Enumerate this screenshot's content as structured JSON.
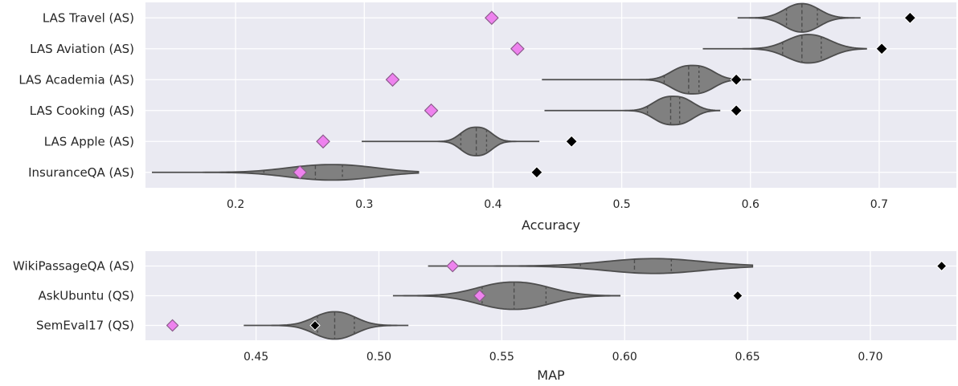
{
  "colors": {
    "background": "#eaeaf2",
    "grid": "#ffffff",
    "violin_fill": "#808080",
    "violin_edge": "#4d4d4d",
    "pink_marker": "#ee82ee",
    "black_marker": "#000000"
  },
  "chart_data": [
    {
      "type": "violin",
      "orientation": "horizontal",
      "xlabel": "Accuracy",
      "xlim": [
        0.13,
        0.76
      ],
      "xticks": [
        0.2,
        0.3,
        0.4,
        0.5,
        0.6,
        0.7
      ],
      "xtick_labels": [
        "0.2",
        "0.3",
        "0.4",
        "0.5",
        "0.6",
        "0.7"
      ],
      "grid": true,
      "categories": [
        "LAS Travel (AS)",
        "LAS Aviation (AS)",
        "LAS Academia (AS)",
        "LAS Cooking (AS)",
        "LAS Apple (AS)",
        "InsuranceQA (AS)"
      ],
      "violins": [
        {
          "min": 0.59,
          "max": 0.685,
          "q1": 0.628,
          "median": 0.64,
          "q3": 0.652,
          "peak": 0.64,
          "halfwidth": 0.92,
          "sharp": 2.2
        },
        {
          "min": 0.563,
          "max": 0.69,
          "q1": 0.625,
          "median": 0.64,
          "q3": 0.655,
          "peak": 0.645,
          "halfwidth": 0.92,
          "sharp": 2.2
        },
        {
          "min": 0.438,
          "max": 0.6,
          "q1": 0.533,
          "median": 0.552,
          "q3": 0.56,
          "peak": 0.555,
          "halfwidth": 0.92,
          "sharp": 2.6
        },
        {
          "min": 0.44,
          "max": 0.576,
          "q1": 0.52,
          "median": 0.538,
          "q3": 0.545,
          "peak": 0.54,
          "halfwidth": 0.92,
          "sharp": 2.6
        },
        {
          "min": 0.298,
          "max": 0.436,
          "q1": 0.375,
          "median": 0.387,
          "q3": 0.395,
          "peak": 0.387,
          "halfwidth": 0.92,
          "sharp": 2.6
        },
        {
          "min": 0.135,
          "max": 0.342,
          "q1": 0.222,
          "median": 0.262,
          "q3": 0.283,
          "peak": 0.275,
          "halfwidth": 0.5,
          "sharp": 2.2
        }
      ],
      "pink_markers": [
        0.399,
        0.419,
        0.322,
        0.352,
        0.268,
        0.25
      ],
      "black_markers": [
        0.724,
        0.702,
        0.589,
        0.589,
        0.461,
        0.434
      ]
    },
    {
      "type": "violin",
      "orientation": "horizontal",
      "xlabel": "MAP",
      "xlim": [
        0.405,
        0.735
      ],
      "xticks": [
        0.45,
        0.5,
        0.55,
        0.6,
        0.65,
        0.7
      ],
      "xtick_labels": [
        "0.45",
        "0.50",
        "0.55",
        "0.60",
        "0.65",
        "0.70"
      ],
      "grid": true,
      "categories": [
        "WikiPassageQA (AS)",
        "AskUbuntu (QS)",
        "SemEval17 (QS)"
      ],
      "violins": [
        {
          "min": 0.52,
          "max": 0.652,
          "q1": 0.582,
          "median": 0.604,
          "q3": 0.619,
          "peak": 0.612,
          "halfwidth": 0.5,
          "sharp": 2.0
        },
        {
          "min": 0.506,
          "max": 0.598,
          "q1": 0.542,
          "median": 0.555,
          "q3": 0.568,
          "peak": 0.555,
          "halfwidth": 0.92,
          "sharp": 2.2
        },
        {
          "min": 0.445,
          "max": 0.512,
          "q1": 0.475,
          "median": 0.482,
          "q3": 0.49,
          "peak": 0.482,
          "halfwidth": 0.92,
          "sharp": 2.2
        }
      ],
      "pink_markers": [
        0.53,
        0.541,
        0.416
      ],
      "black_markers": [
        0.729,
        0.646,
        0.474
      ]
    }
  ]
}
